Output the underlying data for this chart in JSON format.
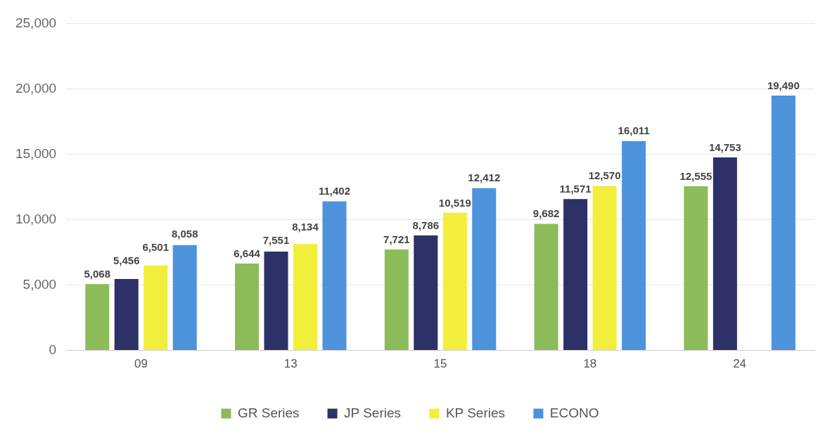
{
  "chart_data": {
    "type": "bar",
    "categories": [
      "09",
      "13",
      "15",
      "18",
      "24"
    ],
    "series": [
      {
        "name": "GR Series",
        "color": "#8dbb5a",
        "values": [
          5068,
          6644,
          7721,
          9682,
          12555
        ],
        "value_labels": [
          "5,068",
          "6,644",
          "7,721",
          "9,682",
          "12,555"
        ]
      },
      {
        "name": "JP Series",
        "color": "#2e3068",
        "values": [
          5456,
          7551,
          8786,
          11571,
          14753
        ],
        "value_labels": [
          "5,456",
          "7,551",
          "8,786",
          "11,571",
          "14,753"
        ]
      },
      {
        "name": "KP Series",
        "color": "#f2ee3c",
        "values": [
          6501,
          8134,
          10519,
          12570,
          null
        ],
        "value_labels": [
          "6,501",
          "8,134",
          "10,519",
          "12,570",
          null
        ]
      },
      {
        "name": "ECONO",
        "color": "#4d93dc",
        "values": [
          8058,
          11402,
          12412,
          16011,
          19490
        ],
        "value_labels": [
          "8,058",
          "11,402",
          "12,412",
          "16,011",
          "19,490"
        ]
      }
    ],
    "ylim": [
      0,
      25000
    ],
    "yticks": [
      {
        "value": 0,
        "label": "0"
      },
      {
        "value": 5000,
        "label": "5,000"
      },
      {
        "value": 10000,
        "label": "10,000"
      },
      {
        "value": 15000,
        "label": "15,000"
      },
      {
        "value": 20000,
        "label": "20,000"
      },
      {
        "value": 25000,
        "label": "25,000"
      }
    ],
    "grid": "y",
    "legend": "bottom"
  }
}
